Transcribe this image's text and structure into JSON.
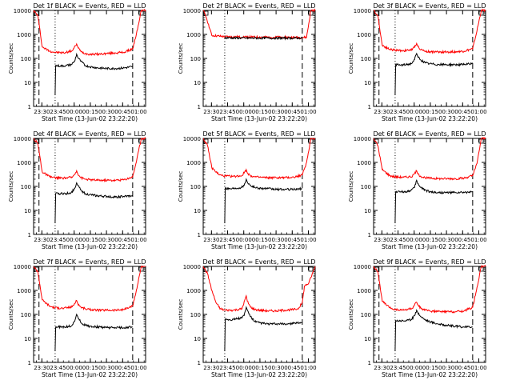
{
  "figure": {
    "xlabel": "Start Time (13-Jun-02 23:22:20)",
    "ylabel": "Counts/sec",
    "x_ticks": [
      "23:30",
      "23:45",
      "00:00",
      "00:15",
      "00:30",
      "00:45",
      "01:00"
    ],
    "y_ticks": [
      "1",
      "10",
      "100",
      "1000",
      "10000"
    ]
  },
  "colors": {
    "events": "#000000",
    "lld": "#ff0000",
    "axes": "#000000"
  },
  "chart_data": [
    {
      "type": "line",
      "title": "Det 1f BLACK = Events, RED = LLD",
      "xlabel": "Start Time (13-Jun-02 23:22:20)",
      "ylabel": "Counts/sec",
      "x_unit": "minutes after 23:22:20",
      "xlim": [
        0,
        104
      ],
      "ylim": [
        1,
        10000
      ],
      "yscale": "log",
      "dashed_markers": [
        5,
        92
      ],
      "dotted_markers": [
        20
      ],
      "series": [
        {
          "name": "LLD (red)",
          "x": [
            0,
            4,
            8,
            15,
            20,
            28,
            36,
            40,
            41,
            44,
            48,
            52,
            60,
            68,
            76,
            84,
            92,
            95,
            100,
            102,
            104
          ],
          "values": [
            10000,
            6000,
            300,
            200,
            180,
            170,
            210,
            400,
            300,
            190,
            160,
            150,
            150,
            160,
            170,
            180,
            250,
            800,
            10000,
            10000,
            10000
          ]
        },
        {
          "name": "Events (black)",
          "x": [
            20,
            20.5,
            25,
            30,
            35,
            38,
            40,
            41,
            44,
            48,
            52,
            60,
            68,
            76,
            84,
            91,
            92
          ],
          "values": [
            3,
            50,
            48,
            50,
            55,
            75,
            150,
            110,
            75,
            50,
            45,
            40,
            38,
            38,
            40,
            45,
            45
          ]
        }
      ]
    },
    {
      "type": "line",
      "title": "Det 2f BLACK = Events, RED = LLD",
      "xlabel": "Start Time (13-Jun-02 23:22:20)",
      "ylabel": "Counts/sec",
      "x_unit": "minutes after 23:22:20",
      "xlim": [
        0,
        104
      ],
      "ylim": [
        1,
        10000
      ],
      "yscale": "log",
      "dashed_markers": [
        92
      ],
      "dotted_markers": [
        20
      ],
      "series": [
        {
          "name": "LLD (red)",
          "x": [
            0,
            3,
            8,
            20,
            40,
            60,
            80,
            92,
            96,
            100,
            104
          ],
          "values": [
            10000,
            5000,
            900,
            800,
            780,
            770,
            760,
            740,
            760,
            10000,
            10000
          ]
        },
        {
          "name": "Events (black)",
          "x": [
            20,
            40,
            60,
            80,
            92
          ],
          "values": [
            720,
            700,
            700,
            700,
            700
          ]
        }
      ]
    },
    {
      "type": "line",
      "title": "Det 3f BLACK = Events, RED = LLD",
      "xlabel": "Start Time (13-Jun-02 23:22:20)",
      "ylabel": "Counts/sec",
      "x_unit": "minutes after 23:22:20",
      "xlim": [
        0,
        104
      ],
      "ylim": [
        1,
        10000
      ],
      "yscale": "log",
      "dashed_markers": [
        5,
        92
      ],
      "dotted_markers": [
        20
      ],
      "series": [
        {
          "name": "LLD (red)",
          "x": [
            0,
            4,
            8,
            15,
            20,
            28,
            36,
            40,
            41,
            44,
            48,
            52,
            60,
            68,
            76,
            84,
            92,
            95,
            100,
            102,
            104
          ],
          "values": [
            10000,
            6000,
            350,
            240,
            220,
            210,
            230,
            420,
            320,
            230,
            200,
            190,
            185,
            185,
            190,
            200,
            250,
            900,
            10000,
            10000,
            10000
          ]
        },
        {
          "name": "Events (black)",
          "x": [
            20,
            20.5,
            25,
            30,
            35,
            38,
            40,
            41,
            44,
            48,
            52,
            60,
            68,
            76,
            84,
            91,
            92
          ],
          "values": [
            3,
            55,
            52,
            55,
            60,
            90,
            160,
            120,
            85,
            65,
            60,
            55,
            55,
            55,
            55,
            60,
            65
          ]
        }
      ]
    },
    {
      "type": "line",
      "title": "Det 4f BLACK = Events, RED = LLD",
      "xlabel": "Start Time (13-Jun-02 23:22:20)",
      "ylabel": "Counts/sec",
      "x_unit": "minutes after 23:22:20",
      "xlim": [
        0,
        104
      ],
      "ylim": [
        1,
        10000
      ],
      "yscale": "log",
      "dashed_markers": [
        5,
        92
      ],
      "dotted_markers": [
        20
      ],
      "series": [
        {
          "name": "LLD (red)",
          "x": [
            0,
            4,
            8,
            15,
            20,
            28,
            36,
            40,
            41,
            44,
            48,
            52,
            60,
            68,
            76,
            84,
            92,
            95,
            100,
            102,
            104
          ],
          "values": [
            10000,
            6000,
            400,
            250,
            230,
            220,
            240,
            450,
            330,
            230,
            200,
            190,
            180,
            180,
            180,
            190,
            250,
            900,
            10000,
            10000,
            10000
          ]
        },
        {
          "name": "Events (black)",
          "x": [
            20,
            20.5,
            25,
            30,
            35,
            38,
            40,
            41,
            44,
            48,
            52,
            60,
            68,
            76,
            84,
            91,
            92
          ],
          "values": [
            3,
            50,
            50,
            50,
            55,
            80,
            140,
            110,
            70,
            50,
            45,
            40,
            38,
            36,
            38,
            40,
            42
          ]
        }
      ]
    },
    {
      "type": "line",
      "title": "Det 5f BLACK = Events, RED = LLD",
      "xlabel": "Start Time (13-Jun-02 23:22:20)",
      "ylabel": "Counts/sec",
      "x_unit": "minutes after 23:22:20",
      "xlim": [
        0,
        104
      ],
      "ylim": [
        1,
        10000
      ],
      "yscale": "log",
      "dashed_markers": [
        92
      ],
      "dotted_markers": [
        20
      ],
      "series": [
        {
          "name": "LLD (red)",
          "x": [
            0,
            4,
            8,
            15,
            20,
            28,
            36,
            40,
            41,
            44,
            48,
            52,
            60,
            68,
            76,
            84,
            92,
            96,
            100,
            104
          ],
          "values": [
            10000,
            5000,
            600,
            300,
            270,
            260,
            280,
            500,
            360,
            280,
            250,
            240,
            230,
            230,
            230,
            240,
            300,
            1000,
            10000,
            10000
          ]
        },
        {
          "name": "Events (black)",
          "x": [
            20,
            20.5,
            25,
            30,
            35,
            38,
            40,
            41,
            44,
            48,
            52,
            60,
            68,
            76,
            84,
            91,
            92
          ],
          "values": [
            3,
            85,
            80,
            85,
            90,
            110,
            200,
            150,
            110,
            90,
            85,
            80,
            75,
            75,
            75,
            80,
            80
          ]
        }
      ]
    },
    {
      "type": "line",
      "title": "Det 6f BLACK = Events, RED = LLD",
      "xlabel": "Start Time (13-Jun-02 23:22:20)",
      "ylabel": "Counts/sec",
      "x_unit": "minutes after 23:22:20",
      "xlim": [
        0,
        104
      ],
      "ylim": [
        1,
        10000
      ],
      "yscale": "log",
      "dashed_markers": [
        92
      ],
      "dotted_markers": [
        20
      ],
      "series": [
        {
          "name": "LLD (red)",
          "x": [
            0,
            4,
            8,
            15,
            20,
            28,
            36,
            40,
            41,
            44,
            48,
            52,
            60,
            68,
            76,
            84,
            92,
            96,
            100,
            104
          ],
          "values": [
            10000,
            5000,
            500,
            280,
            250,
            240,
            260,
            450,
            330,
            260,
            230,
            220,
            210,
            210,
            210,
            220,
            280,
            900,
            10000,
            10000
          ]
        },
        {
          "name": "Events (black)",
          "x": [
            20,
            20.5,
            25,
            30,
            35,
            38,
            40,
            41,
            44,
            48,
            52,
            60,
            68,
            76,
            84,
            91,
            92
          ],
          "values": [
            3,
            60,
            60,
            60,
            70,
            90,
            180,
            130,
            90,
            70,
            60,
            55,
            55,
            55,
            55,
            60,
            60
          ]
        }
      ]
    },
    {
      "type": "line",
      "title": "Det 7f BLACK = Events, RED = LLD",
      "xlabel": "Start Time (13-Jun-02 23:22:20)",
      "ylabel": "Counts/sec",
      "x_unit": "minutes after 23:22:20",
      "xlim": [
        0,
        104
      ],
      "ylim": [
        1,
        10000
      ],
      "yscale": "log",
      "dashed_markers": [
        5,
        92
      ],
      "dotted_markers": [
        20
      ],
      "series": [
        {
          "name": "LLD (red)",
          "x": [
            0,
            4,
            8,
            15,
            20,
            28,
            36,
            40,
            41,
            44,
            48,
            52,
            60,
            68,
            76,
            84,
            92,
            95,
            100,
            102,
            104
          ],
          "values": [
            10000,
            6000,
            400,
            220,
            190,
            180,
            210,
            380,
            280,
            200,
            170,
            160,
            150,
            150,
            150,
            160,
            220,
            800,
            10000,
            10000,
            10000
          ]
        },
        {
          "name": "Events (black)",
          "x": [
            20,
            20.5,
            25,
            30,
            35,
            38,
            40,
            41,
            44,
            48,
            52,
            60,
            68,
            76,
            84,
            91,
            92
          ],
          "values": [
            3,
            30,
            30,
            30,
            33,
            50,
            100,
            80,
            45,
            35,
            32,
            30,
            28,
            28,
            28,
            30,
            30
          ]
        }
      ]
    },
    {
      "type": "line",
      "title": "Det 8f BLACK = Events, RED = LLD",
      "xlabel": "Start Time (13-Jun-02 23:22:20)",
      "ylabel": "Counts/sec",
      "x_unit": "minutes after 23:22:20",
      "xlim": [
        0,
        104
      ],
      "ylim": [
        1,
        10000
      ],
      "yscale": "log",
      "dashed_markers": [
        92
      ],
      "dotted_markers": [
        20
      ],
      "series": [
        {
          "name": "LLD (red)",
          "x": [
            0,
            4,
            8,
            12,
            16,
            20,
            28,
            36,
            40,
            41,
            44,
            48,
            52,
            60,
            68,
            76,
            84,
            88,
            92,
            94,
            98,
            104
          ],
          "values": [
            10000,
            5000,
            1000,
            300,
            170,
            150,
            150,
            170,
            600,
            350,
            200,
            160,
            150,
            140,
            140,
            150,
            160,
            170,
            300,
            1500,
            2000,
            10000
          ]
        },
        {
          "name": "Events (black)",
          "x": [
            20,
            20.5,
            25,
            30,
            35,
            38,
            40,
            41,
            44,
            48,
            52,
            60,
            68,
            76,
            84,
            91,
            92
          ],
          "values": [
            3,
            65,
            60,
            65,
            70,
            90,
            200,
            150,
            80,
            50,
            45,
            40,
            40,
            40,
            42,
            45,
            45
          ]
        }
      ]
    },
    {
      "type": "line",
      "title": "Det 9f BLACK = Events, RED = LLD",
      "xlabel": "Start Time (13-Jun-02 23:22:20)",
      "ylabel": "Counts/sec",
      "x_unit": "minutes after 23:22:20",
      "xlim": [
        0,
        104
      ],
      "ylim": [
        1,
        10000
      ],
      "yscale": "log",
      "dashed_markers": [
        5,
        92
      ],
      "dotted_markers": [
        20
      ],
      "series": [
        {
          "name": "LLD (red)",
          "x": [
            0,
            4,
            8,
            15,
            20,
            28,
            36,
            40,
            41,
            44,
            48,
            52,
            60,
            68,
            76,
            84,
            92,
            95,
            100,
            102,
            104
          ],
          "values": [
            10000,
            6000,
            350,
            190,
            160,
            150,
            180,
            320,
            250,
            180,
            150,
            140,
            130,
            130,
            130,
            140,
            200,
            800,
            10000,
            10000,
            10000
          ]
        },
        {
          "name": "Events (black)",
          "x": [
            20,
            20.5,
            25,
            30,
            35,
            38,
            40,
            41,
            44,
            48,
            52,
            60,
            68,
            76,
            84,
            91,
            92
          ],
          "values": [
            3,
            55,
            55,
            55,
            60,
            90,
            150,
            120,
            80,
            60,
            50,
            40,
            35,
            32,
            30,
            30,
            30
          ]
        }
      ]
    }
  ]
}
